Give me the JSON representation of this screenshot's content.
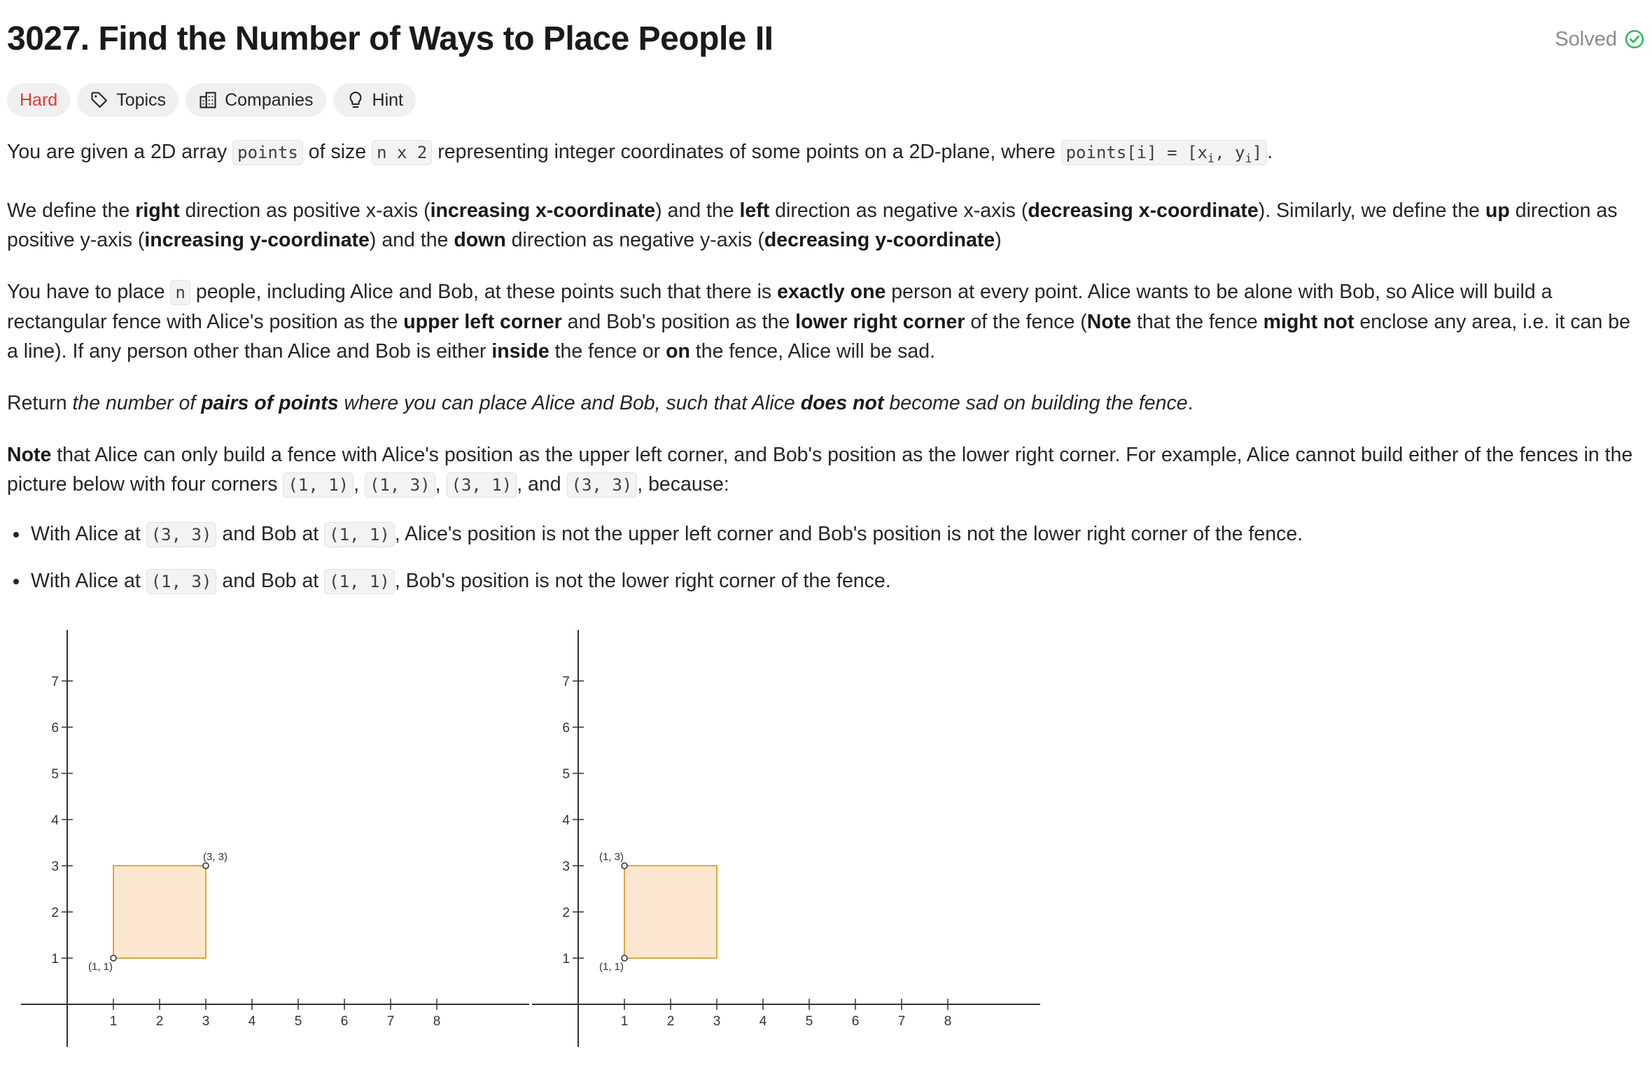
{
  "header": {
    "title": "3027. Find the Number of Ways to Place People II",
    "status": "Solved",
    "status_color": "#2cbb5d"
  },
  "tags": {
    "difficulty": "Hard",
    "difficulty_color": "#e03a2f",
    "topics": "Topics",
    "companies": "Companies",
    "hint": "Hint",
    "topics_icon": "tag-icon",
    "companies_icon": "building-icon",
    "hint_icon": "lightbulb-icon"
  },
  "description": {
    "p1": {
      "t1": "You are given a 2D array ",
      "c1": "points",
      "t2": " of size ",
      "c2": "n x 2",
      "t3": " representing integer coordinates of some points on a 2D-plane, where ",
      "c3a": "points[i] = [x",
      "c3sub1": "i",
      "c3b": ", y",
      "c3sub2": "i",
      "c3c": "]",
      "t4": "."
    },
    "p2": {
      "t1": "We define the ",
      "b1": "right",
      "t2": " direction as positive x-axis (",
      "b2": "increasing x-coordinate",
      "t3": ") and the ",
      "b3": "left",
      "t4": " direction as negative x-axis (",
      "b4": "decreasing x-coordinate",
      "t5": "). Similarly, we define the ",
      "b5": "up",
      "t6": " direction as positive y-axis (",
      "b6": "increasing y-coordinate",
      "t7": ") and the ",
      "b7": "down",
      "t8": " direction as negative y-axis (",
      "b8": "decreasing y-coordinate",
      "t9": ")"
    },
    "p3": {
      "t1": "You have to place ",
      "c1": "n",
      "t2": " people, including Alice and Bob, at these points such that there is ",
      "b1": "exactly one",
      "t3": " person at every point. Alice wants to be alone with Bob, so Alice will build a rectangular fence with Alice's position as the ",
      "b2": "upper left corner",
      "t4": " and Bob's position as the ",
      "b3": "lower right corner",
      "t5": " of the fence (",
      "b4": "Note",
      "t6": " that the fence ",
      "b5": "might not",
      "t7": " enclose any area, i.e. it can be a line). If any person other than Alice and Bob is either ",
      "b6": "inside",
      "t8": " the fence or ",
      "b7": "on",
      "t9": " the fence, Alice will be sad."
    },
    "p4": {
      "t1": "Return ",
      "i1": "the number of ",
      "bi1": "pairs of points",
      "i2": " where you can place Alice and Bob, such that Alice ",
      "bi2": "does not",
      "i3": " become sad on building the fence",
      "t2": "."
    },
    "p5": {
      "b1": "Note",
      "t1": " that Alice can only build a fence with Alice's position as the upper left corner, and Bob's position as the lower right corner. For example, Alice cannot build either of the fences in the picture below with four corners ",
      "c1": "(1, 1)",
      "s1": ", ",
      "c2": "(1, 3)",
      "s2": ", ",
      "c3": "(3, 1)",
      "s3": ", and ",
      "c4": "(3, 3)",
      "t2": ", because:"
    },
    "bullets": [
      {
        "t1": "With Alice at ",
        "c1": "(3, 3)",
        "t2": " and Bob at ",
        "c2": "(1, 1)",
        "t3": ", Alice's position is not the upper left corner and Bob's position is not the lower right corner of the fence."
      },
      {
        "t1": "With Alice at ",
        "c1": "(1, 3)",
        "t2": " and Bob at ",
        "c2": "(1, 1)",
        "t3": ", Bob's position is not the lower right corner of the fence."
      }
    ]
  },
  "figures": [
    {
      "x_ticks": [
        "1",
        "2",
        "3",
        "4",
        "5",
        "6",
        "7",
        "8"
      ],
      "y_ticks": [
        "1",
        "2",
        "3",
        "4",
        "5",
        "6",
        "7"
      ],
      "rect": {
        "x1": 1,
        "y1": 1,
        "x2": 3,
        "y2": 3
      },
      "points": [
        {
          "x": 1,
          "y": 1,
          "label": "(1, 1)"
        },
        {
          "x": 3,
          "y": 3,
          "label": "(3, 3)"
        }
      ],
      "fill_color": "#fbe6d0",
      "stroke_color": "#e0a640"
    },
    {
      "x_ticks": [
        "1",
        "2",
        "3",
        "4",
        "5",
        "6",
        "7",
        "8"
      ],
      "y_ticks": [
        "1",
        "2",
        "3",
        "4",
        "5",
        "6",
        "7"
      ],
      "rect": {
        "x1": 1,
        "y1": 1,
        "x2": 3,
        "y2": 3
      },
      "points": [
        {
          "x": 1,
          "y": 1,
          "label": "(1, 1)"
        },
        {
          "x": 1,
          "y": 3,
          "label": "(1, 3)"
        }
      ],
      "fill_color": "#fbe6d0",
      "stroke_color": "#e0a640"
    }
  ]
}
